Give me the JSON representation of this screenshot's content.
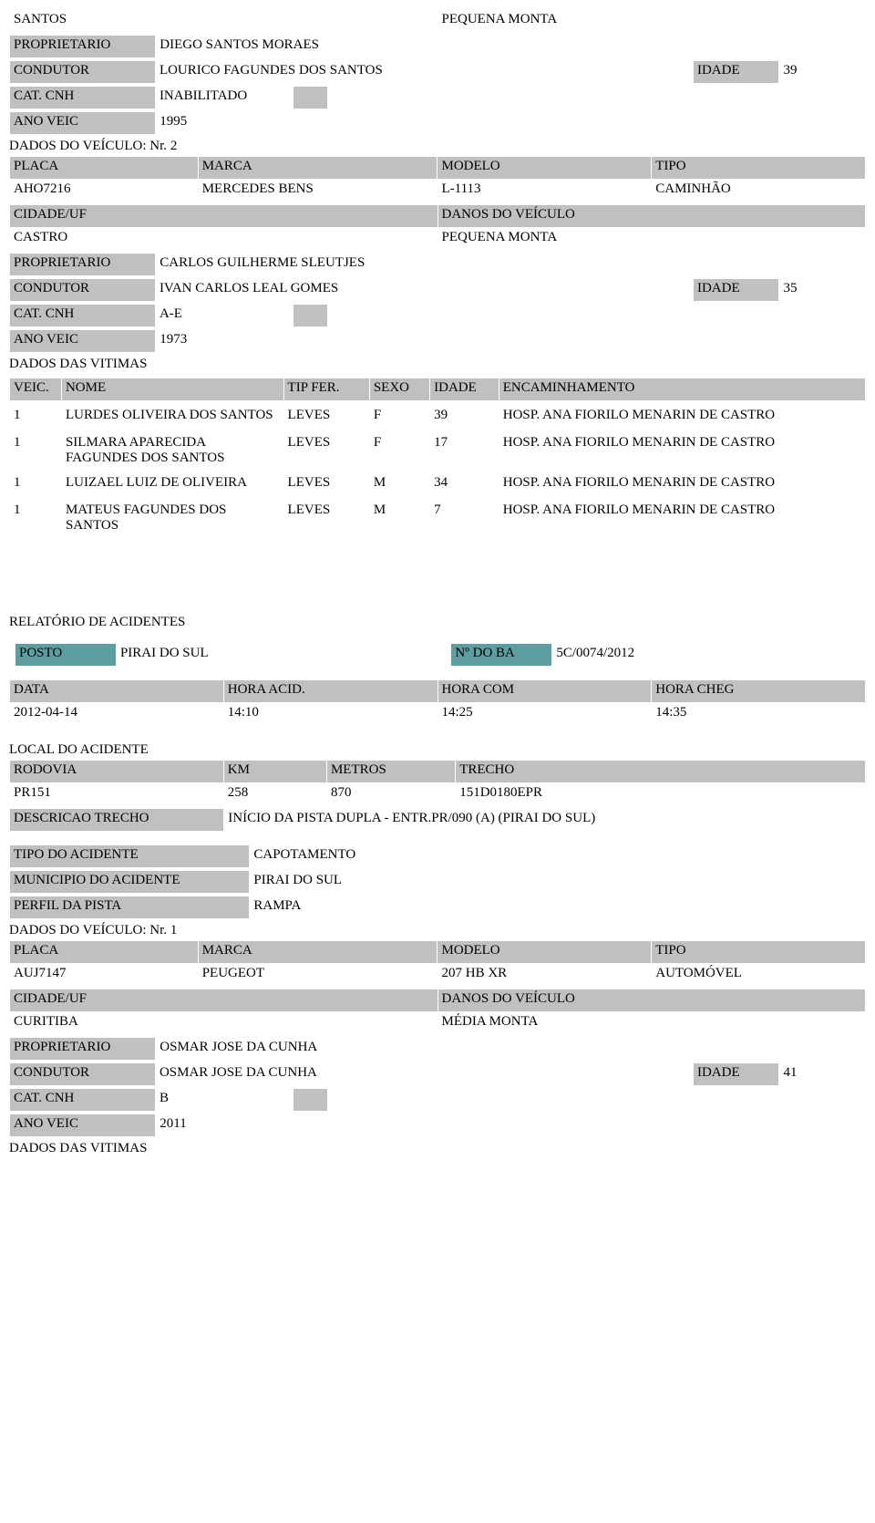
{
  "labels": {
    "proprietario": "PROPRIETARIO",
    "condutor": "CONDUTOR",
    "idade": "IDADE",
    "cat_cnh": "CAT. CNH",
    "ano_veic": "ANO VEIC",
    "dados_veiculo_nr": "DADOS DO VEÍCULO: Nr.",
    "placa": "PLACA",
    "marca": "MARCA",
    "modelo": "MODELO",
    "tipo": "TIPO",
    "cidade_uf": "CIDADE/UF",
    "danos_veiculo": "DANOS DO VEÍCULO",
    "dados_vitimas": "DADOS DAS VITIMAS",
    "veic": "VEIC.",
    "nome": "NOME",
    "tip_fer": "TIP FER.",
    "sexo": "SEXO",
    "encaminhamento": "ENCAMINHAMENTO",
    "relatorio": "RELATÓRIO DE ACIDENTES",
    "posto": "POSTO",
    "n_do_ba": "Nº DO BA",
    "data": "DATA",
    "hora_acid": "HORA ACID.",
    "hora_com": "HORA COM",
    "hora_cheg": "HORA CHEG",
    "local_acidente": "LOCAL DO ACIDENTE",
    "rodovia": "RODOVIA",
    "km": "KM",
    "metros": "METROS",
    "trecho": "TRECHO",
    "descricao_trecho": "DESCRICAO TRECHO",
    "tipo_acidente": "TIPO DO ACIDENTE",
    "municipio_acidente": "MUNICIPIO DO ACIDENTE",
    "perfil_pista": "PERFIL DA PISTA"
  },
  "top": {
    "santos": "SANTOS",
    "pequena_monta": "PEQUENA MONTA",
    "proprietario_val": "DIEGO SANTOS MORAES",
    "condutor_val": "LOURICO FAGUNDES DOS SANTOS",
    "condutor_idade": "39",
    "cat_cnh_val": "INABILITADO",
    "ano_veic_val": "1995"
  },
  "veic2_nr": "2",
  "veic2": {
    "placa": "AHO7216",
    "marca": "MERCEDES BENS",
    "modelo": "L-1113",
    "tipo": "CAMINHÃO",
    "cidade": "CASTRO",
    "danos": "PEQUENA MONTA",
    "proprietario": "CARLOS GUILHERME SLEUTJES",
    "condutor": "IVAN CARLOS LEAL GOMES",
    "condutor_idade": "35",
    "cat_cnh": "A-E",
    "ano_veic": "1973"
  },
  "vitimas": [
    {
      "veic": "1",
      "nome": "LURDES OLIVEIRA DOS SANTOS",
      "tipfer": "LEVES",
      "sexo": "F",
      "idade": "39",
      "enc": "HOSP. ANA FIORILO MENARIN DE CASTRO"
    },
    {
      "veic": "1",
      "nome": "SILMARA APARECIDA FAGUNDES DOS SANTOS",
      "tipfer": "LEVES",
      "sexo": "F",
      "idade": "17",
      "enc": "HOSP. ANA FIORILO MENARIN DE CASTRO"
    },
    {
      "veic": "1",
      "nome": "LUIZAEL LUIZ DE OLIVEIRA",
      "tipfer": "LEVES",
      "sexo": "M",
      "idade": "34",
      "enc": "HOSP. ANA FIORILO MENARIN DE CASTRO"
    },
    {
      "veic": "1",
      "nome": "MATEUS FAGUNDES DOS SANTOS",
      "tipfer": "LEVES",
      "sexo": "M",
      "idade": "7",
      "enc": "HOSP. ANA FIORILO MENARIN DE CASTRO"
    }
  ],
  "relatorio": {
    "posto": "PIRAI DO SUL",
    "n_ba": "5C/0074/2012",
    "data": "2012-04-14",
    "hora_acid": "14:10",
    "hora_com": "14:25",
    "hora_cheg": "14:35",
    "rodovia": "PR151",
    "km": "258",
    "metros": "870",
    "trecho": "151D0180EPR",
    "descricao_trecho": "INÍCIO DA PISTA DUPLA - ENTR.PR/090 (A) (PIRAI DO SUL)",
    "tipo_acidente": "CAPOTAMENTO",
    "municipio_acidente": "PIRAI DO SUL",
    "perfil_pista": "RAMPA"
  },
  "veic1_nr": "1",
  "veic1": {
    "placa": "AUJ7147",
    "marca": "PEUGEOT",
    "modelo": "207 HB XR",
    "tipo": "AUTOMÓVEL",
    "cidade": "CURITIBA",
    "danos": "MÉDIA MONTA",
    "proprietario": "OSMAR JOSE DA CUNHA",
    "condutor": "OSMAR JOSE DA CUNHA",
    "condutor_idade": "41",
    "cat_cnh": "B",
    "ano_veic": "2011"
  },
  "colors": {
    "header_bg": "#c0c0c0",
    "teal_bg": "#5f9ea0",
    "text": "#000000",
    "page_bg": "#ffffff"
  }
}
